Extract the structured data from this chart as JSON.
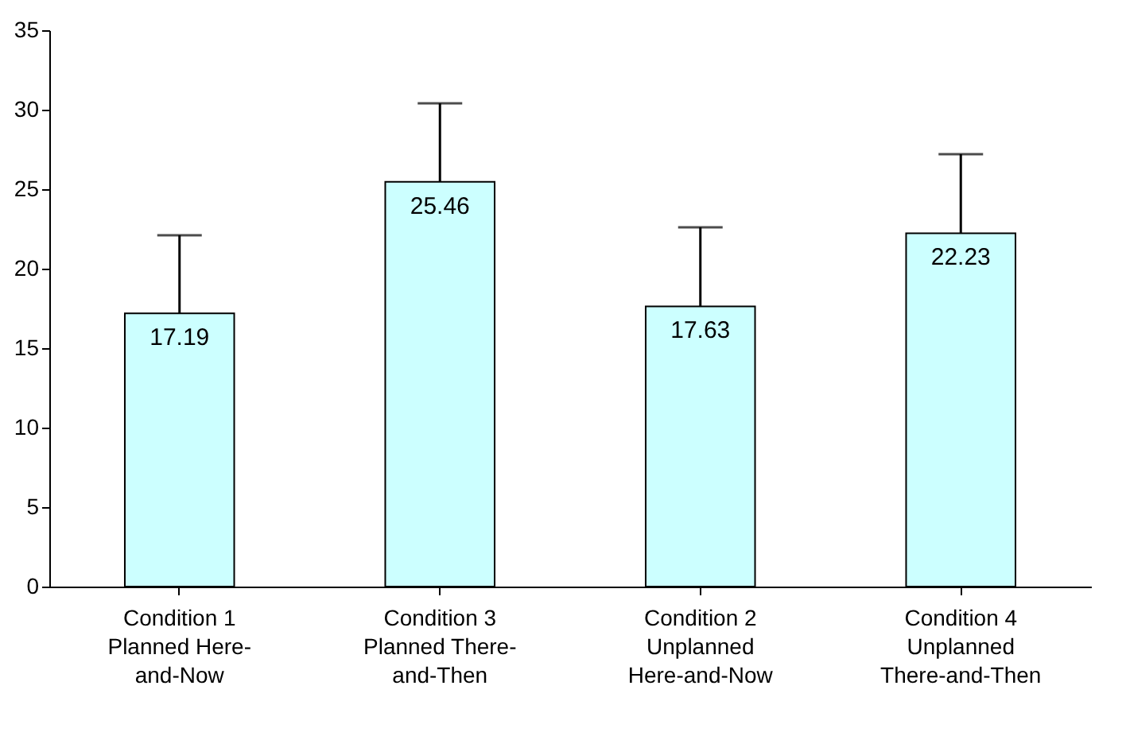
{
  "chart_data": {
    "type": "bar",
    "categories": [
      "Condition 1 Planned Here-and-Now",
      "Condition 3 Planned There-and-Then",
      "Condition 2 Unplanned Here-and-Now",
      "Condition 4 Unplanned There-and-Then"
    ],
    "values": [
      17.19,
      25.46,
      17.63,
      22.23
    ],
    "errors": [
      [
        17.19,
        22.1
      ],
      [
        25.46,
        30.4
      ],
      [
        17.63,
        22.6
      ],
      [
        22.23,
        27.2
      ]
    ],
    "color": "#ccffff",
    "ylim": [
      0,
      35
    ],
    "yticks": [
      0,
      5,
      10,
      15,
      20,
      25,
      30,
      35
    ],
    "data_labels": true
  }
}
